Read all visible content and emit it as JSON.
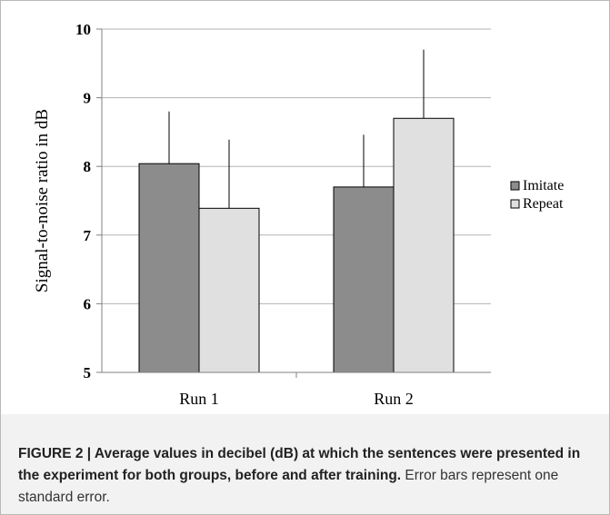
{
  "chart_data": {
    "type": "bar",
    "categories": [
      "Run 1",
      "Run 2"
    ],
    "series": [
      {
        "name": "Imitate",
        "values": [
          8.04,
          7.7
        ],
        "error": [
          0.76,
          0.76
        ],
        "color": "#8c8c8c"
      },
      {
        "name": "Repeat",
        "values": [
          7.39,
          8.7
        ],
        "error": [
          1.0,
          1.0
        ],
        "color": "#e0e0e0"
      }
    ],
    "ylabel": "Signal-to-noise ratio in dB",
    "xlabel": "",
    "ylim": [
      5,
      10
    ],
    "yticks": [
      "5",
      "6",
      "7",
      "8",
      "9",
      "10"
    ],
    "grid": true,
    "legend": "right"
  },
  "caption": {
    "bold": "FIGURE 2 | Average values in decibel (dB) at which the sentences were presented in the experiment for both groups, before and after training.",
    "normal": " Error bars represent one standard error."
  }
}
